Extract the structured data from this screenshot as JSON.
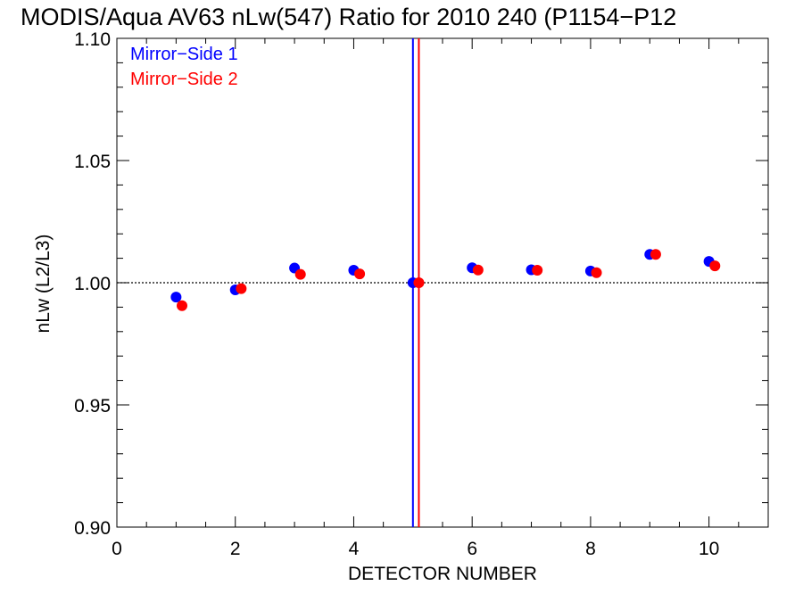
{
  "chart_data": {
    "type": "scatter",
    "title": "MODIS/Aqua AV63 nLw(547) Ratio for 2010 240 (P1154−P12",
    "xlabel": "DETECTOR NUMBER",
    "ylabel": "nLw (L2/L3)",
    "xlim": [
      0,
      11
    ],
    "ylim": [
      0.9,
      1.1
    ],
    "xticks": [
      0,
      2,
      4,
      6,
      8,
      10
    ],
    "xtick_labels": [
      "0",
      "2",
      "4",
      "6",
      "8",
      "10"
    ],
    "yticks": [
      0.9,
      0.95,
      1.0,
      1.05,
      1.1
    ],
    "ytick_labels": [
      "0.90",
      "0.95",
      "1.00",
      "1.05",
      "1.10"
    ],
    "reference_line": 1.0,
    "legend_position": "top-left",
    "series": [
      {
        "name": "Mirror−Side 1",
        "color": "#0000ff",
        "x": [
          1,
          2,
          3,
          4,
          5,
          6,
          7,
          8,
          9,
          10
        ],
        "y": [
          0.9941,
          0.9971,
          1.006,
          1.0051,
          1.0,
          1.0061,
          1.0053,
          1.0048,
          1.0116,
          1.0087
        ],
        "vline": 5.0
      },
      {
        "name": "Mirror−Side 2",
        "color": "#ff0000",
        "x": [
          1.1,
          2.1,
          3.1,
          4.1,
          5.1,
          6.1,
          7.1,
          8.1,
          9.1,
          10.1
        ],
        "y": [
          0.9906,
          0.9976,
          1.0034,
          1.0036,
          1.0,
          1.0052,
          1.0051,
          1.0041,
          1.0116,
          1.0069
        ],
        "vline": 5.1
      }
    ]
  }
}
